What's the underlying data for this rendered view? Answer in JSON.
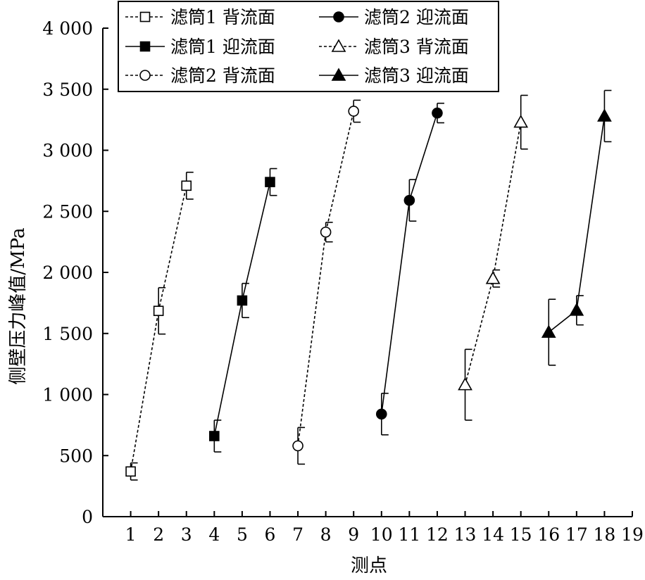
{
  "chart_data": {
    "type": "line",
    "xlabel": "测点",
    "ylabel": "侧壁压力峰值/MPa",
    "xlim": [
      0,
      19
    ],
    "ylim": [
      0,
      4000
    ],
    "x_ticks": [
      "1",
      "2",
      "3",
      "4",
      "5",
      "6",
      "7",
      "8",
      "9",
      "10",
      "11",
      "12",
      "13",
      "14",
      "15",
      "16",
      "17",
      "18",
      "19"
    ],
    "y_ticks": [
      "0",
      "500",
      "1 000",
      "1 500",
      "2 000",
      "2 500",
      "3 000",
      "3 500",
      "4 000"
    ],
    "grid": false,
    "legend_position": "top",
    "series": [
      {
        "name": "滤筒1 背流面",
        "x": [
          1,
          2,
          3
        ],
        "y": [
          370,
          1685,
          2710
        ],
        "err": [
          70,
          190,
          110
        ],
        "marker": "square",
        "filled": false,
        "line": "dashed"
      },
      {
        "name": "滤筒1 迎流面",
        "x": [
          4,
          5,
          6
        ],
        "y": [
          660,
          1770,
          2740
        ],
        "err": [
          130,
          140,
          110
        ],
        "marker": "square",
        "filled": true,
        "line": "solid"
      },
      {
        "name": "滤筒2 背流面",
        "x": [
          7,
          8,
          9
        ],
        "y": [
          580,
          2330,
          3320
        ],
        "err": [
          150,
          80,
          90
        ],
        "marker": "circle",
        "filled": false,
        "line": "dashed"
      },
      {
        "name": "滤筒2 迎流面",
        "x": [
          10,
          11,
          12
        ],
        "y": [
          840,
          2590,
          3305
        ],
        "err": [
          170,
          170,
          80
        ],
        "marker": "circle",
        "filled": true,
        "line": "solid"
      },
      {
        "name": "滤筒3 背流面",
        "x": [
          13,
          14,
          15
        ],
        "y": [
          1080,
          1950,
          3230
        ],
        "err": [
          290,
          70,
          220
        ],
        "marker": "triangle",
        "filled": false,
        "line": "dashed"
      },
      {
        "name": "滤筒3 迎流面",
        "x": [
          16,
          17,
          18
        ],
        "y": [
          1510,
          1690,
          3280
        ],
        "err": [
          270,
          120,
          210
        ],
        "marker": "triangle",
        "filled": true,
        "line": "solid"
      }
    ]
  }
}
